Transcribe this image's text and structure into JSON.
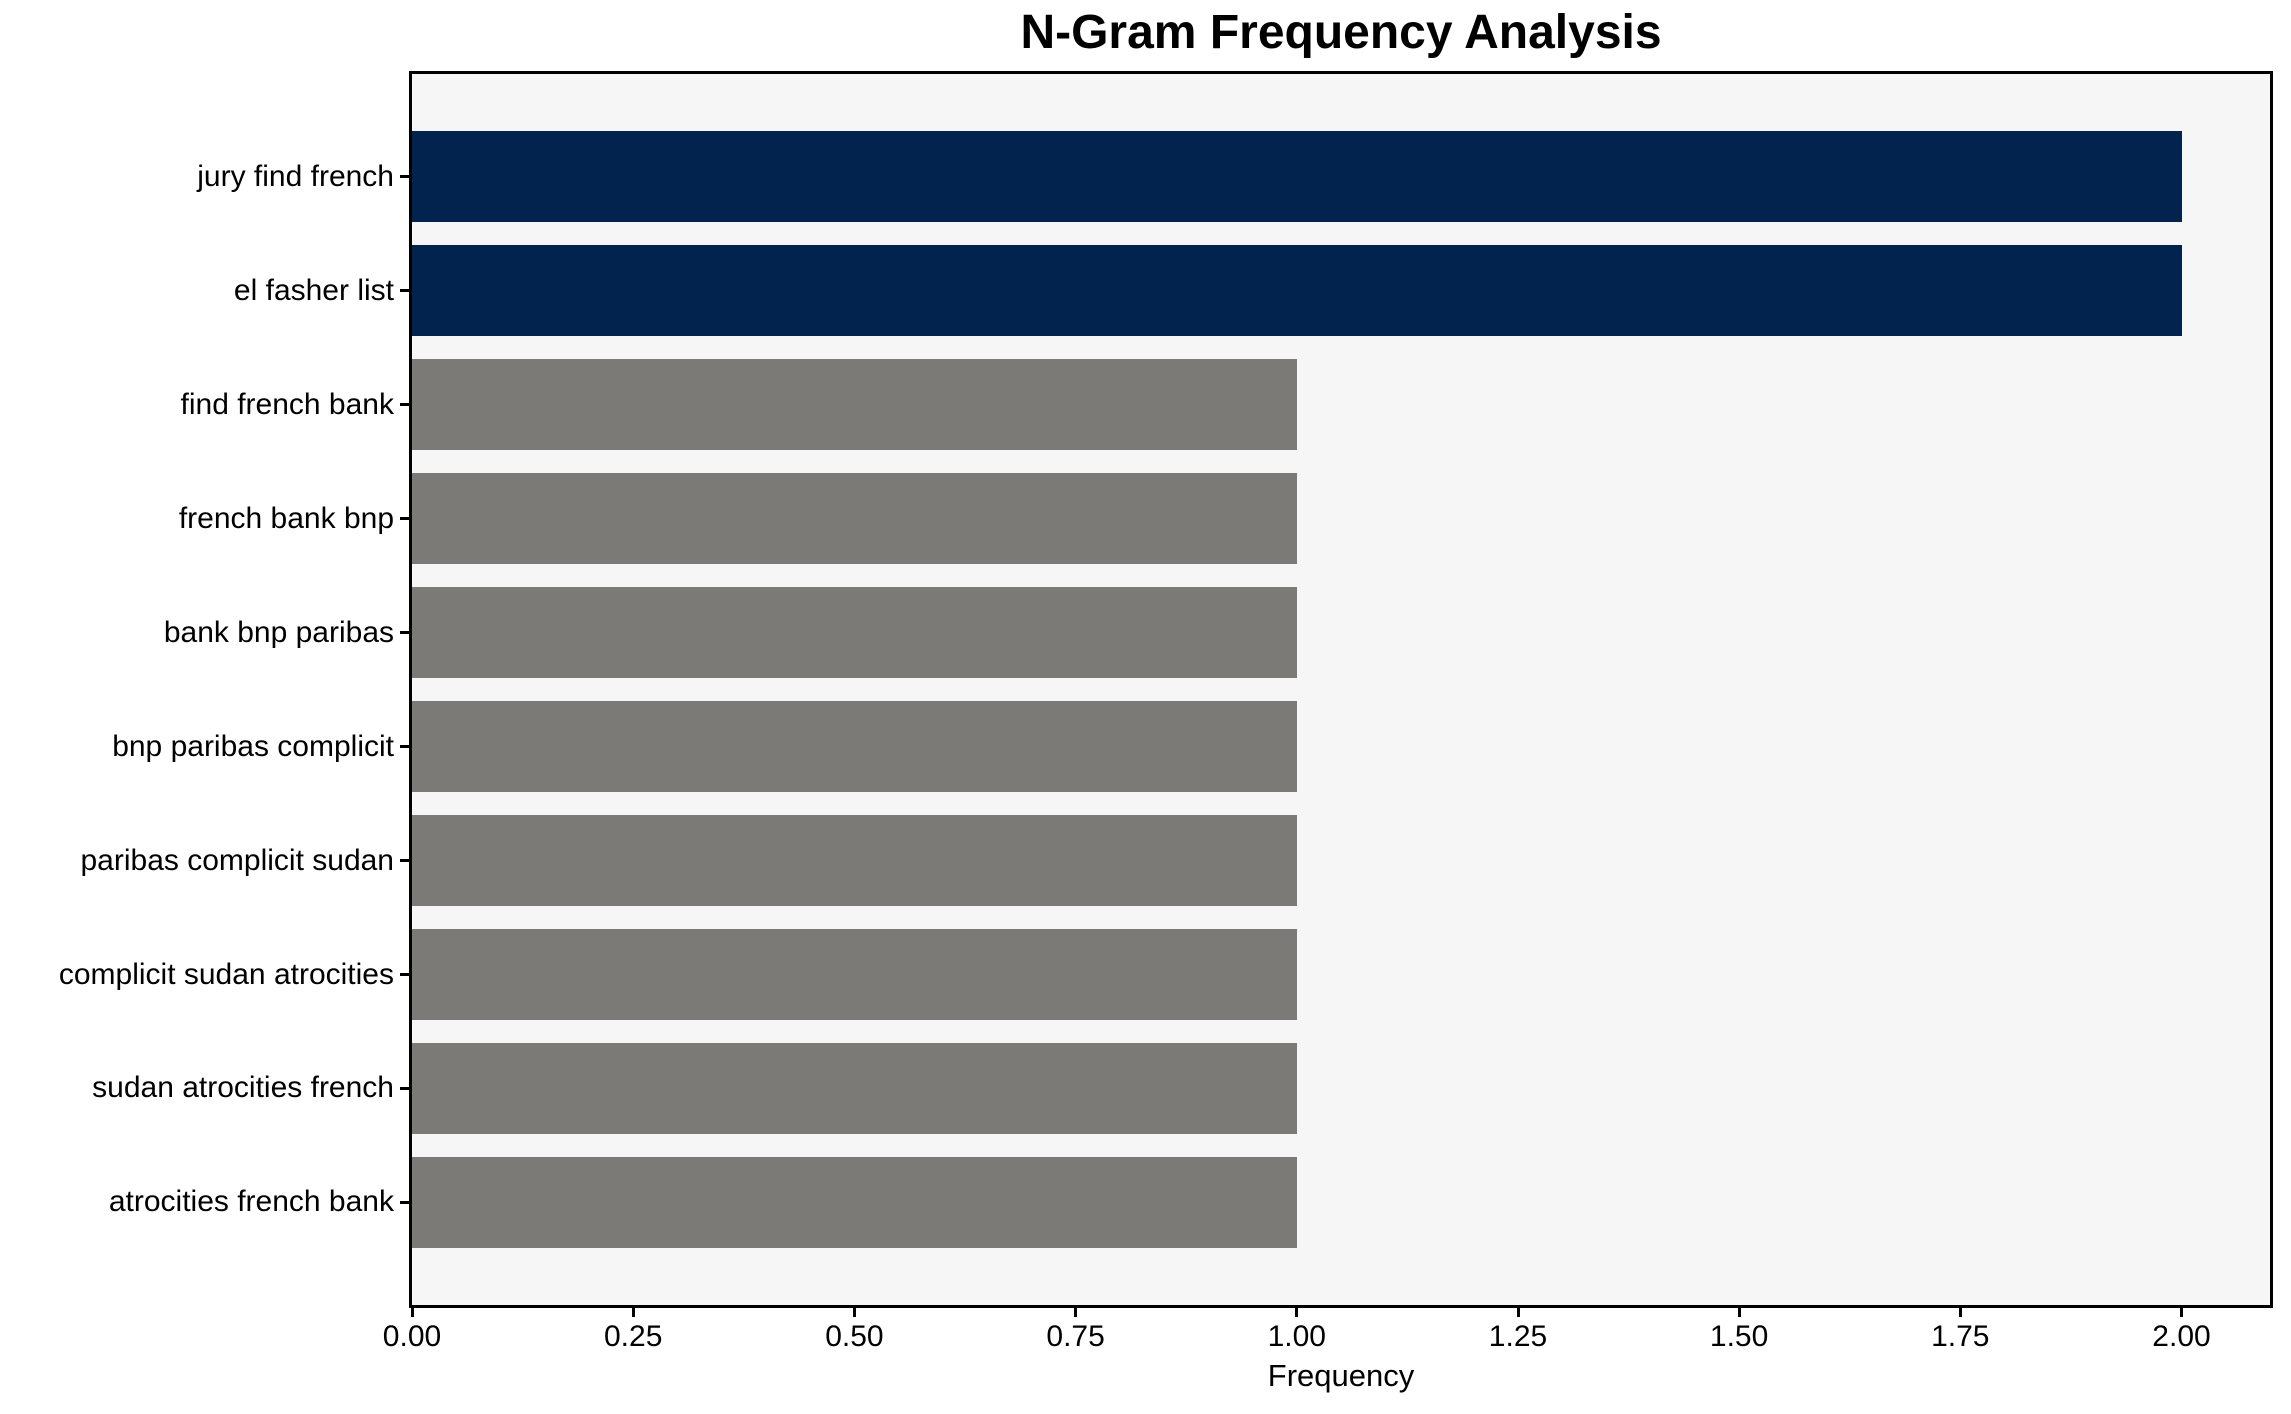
{
  "chart_data": {
    "type": "bar",
    "orientation": "horizontal",
    "title": "N-Gram Frequency Analysis",
    "xlabel": "Frequency",
    "ylabel": "",
    "categories": [
      "jury find french",
      "el fasher list",
      "find french bank",
      "french bank bnp",
      "bank bnp paribas",
      "bnp paribas complicit",
      "paribas complicit sudan",
      "complicit sudan atrocities",
      "sudan atrocities french",
      "atrocities french bank"
    ],
    "values": [
      2,
      2,
      1,
      1,
      1,
      1,
      1,
      1,
      1,
      1
    ],
    "bar_colors": [
      "#02234d",
      "#02234d",
      "#7b7a77",
      "#7b7a77",
      "#7b7a77",
      "#7b7a77",
      "#7b7a77",
      "#7b7a77",
      "#7b7a77",
      "#7b7a77"
    ],
    "xlim": [
      0,
      2.1
    ],
    "xtick_values": [
      0,
      0.25,
      0.5,
      0.75,
      1.0,
      1.25,
      1.5,
      1.75,
      2.0
    ],
    "xtick_labels": [
      "0.00",
      "0.25",
      "0.50",
      "0.75",
      "1.00",
      "1.25",
      "1.50",
      "1.75",
      "2.00"
    ],
    "grid": false,
    "legend": null,
    "colors": {
      "highlight": "#02234d",
      "default": "#7b7a77",
      "plot_background": "#f7f6f7",
      "figure_background": "#ffffff",
      "spine": "#000000",
      "text": "#000000"
    }
  }
}
